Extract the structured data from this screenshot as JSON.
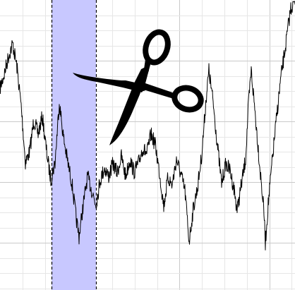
{
  "waveform_editor": {
    "colors": {
      "background": "#ffffff",
      "grid_minor": "#e6e6e6",
      "grid_major": "#c9c9c9",
      "waveform": "#000000",
      "selection_fill": "#c8c8ff",
      "selection_edge": "#000000",
      "icon": "#000000"
    },
    "selection": {
      "start_fraction": 0.175,
      "end_fraction": 0.325
    },
    "tool_icon": "scissors-icon"
  }
}
